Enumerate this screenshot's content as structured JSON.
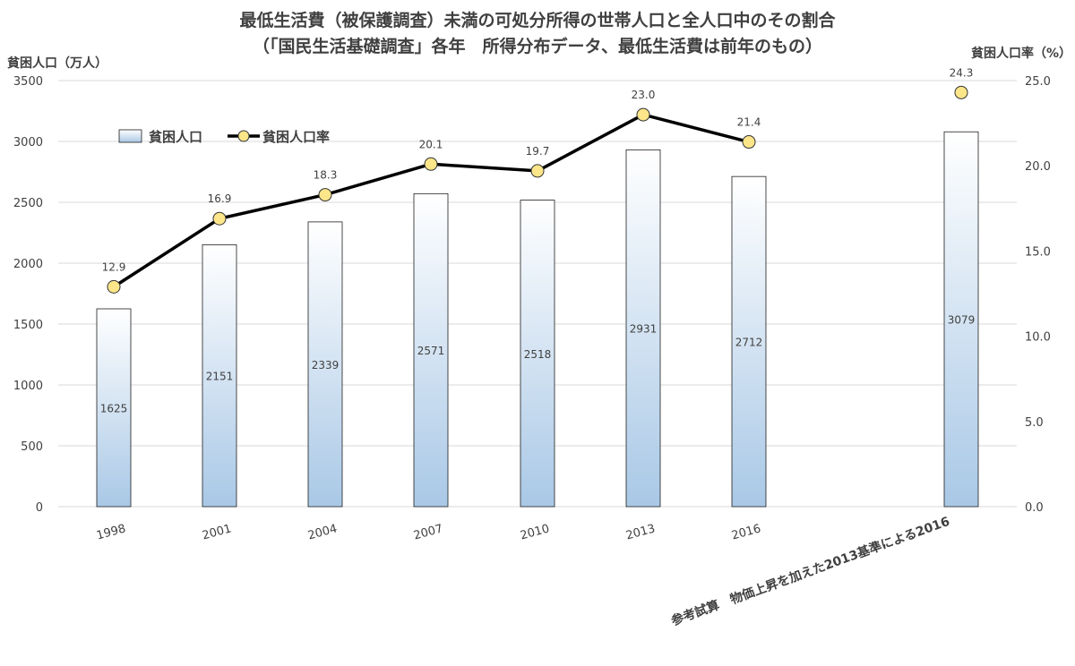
{
  "chart_data": {
    "type": "bar+line",
    "title": "最低生活費（被保護調査）未満の可処分所得の世帯人口と全人口中のその割合",
    "subtitle": "（「国民生活基礎調査」各年　所得分布データ、最低生活費は前年のもの）",
    "y_left_label": "貧困人口（万人）",
    "y_right_label": "貧困人口率（%）",
    "categories": [
      "1998",
      "2001",
      "2004",
      "2007",
      "2010",
      "2013",
      "2016",
      "",
      "参考試算　物価上昇を加えた2013基準による2016"
    ],
    "series": [
      {
        "name": "貧困人口",
        "type": "bar",
        "axis": "left",
        "values": [
          1625,
          2151,
          2339,
          2571,
          2518,
          2931,
          2712,
          null,
          3079
        ],
        "labels": [
          "1625",
          "2151",
          "2339",
          "2571",
          "2518",
          "2931",
          "2712",
          "",
          "3079"
        ]
      },
      {
        "name": "貧困人口率",
        "type": "line",
        "axis": "right",
        "values": [
          12.9,
          16.9,
          18.3,
          20.1,
          19.7,
          23.0,
          21.4,
          null,
          24.3
        ],
        "labels": [
          "12.9",
          "16.9",
          "18.3",
          "20.1",
          "19.7",
          "23.0",
          "21.4",
          "",
          "24.3"
        ],
        "line_connected_through": 7
      }
    ],
    "y_left": {
      "min": 0,
      "max": 3500,
      "ticks": [
        "0",
        "500",
        "1000",
        "1500",
        "2000",
        "2500",
        "3000",
        "3500"
      ]
    },
    "y_right": {
      "min": 0,
      "max": 25,
      "ticks": [
        "0.0",
        "5.0",
        "10.0",
        "15.0",
        "20.0",
        "25.0"
      ]
    },
    "grid": true,
    "legend_position": "top-left",
    "colors": {
      "bar_top": "#ffffff",
      "bar_bottom": "#a9c8e6",
      "bar_border": "#1f1f1f",
      "line": "#000000",
      "marker_fill": "#fde68a",
      "marker_stroke": "#333333",
      "grid": "#d9d9d9",
      "text": "#404040"
    }
  }
}
